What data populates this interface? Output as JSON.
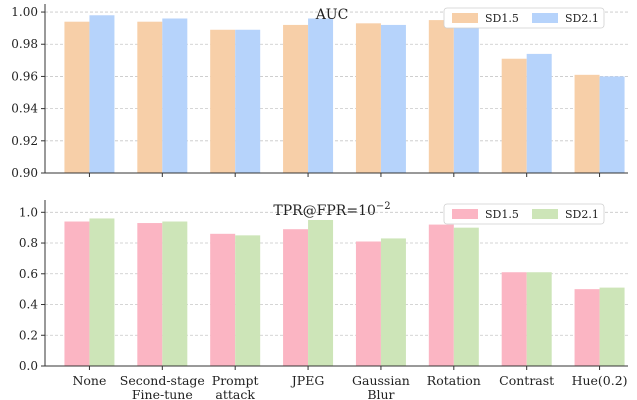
{
  "colors": {
    "auc_sd15": "#f7cfa8",
    "auc_sd21": "#b6d3fb",
    "tpr_sd15": "#fbb5c3",
    "tpr_sd21": "#cde5b8",
    "grid": "#c8c8c8",
    "axis": "#333333"
  },
  "chart_data": [
    {
      "type": "bar",
      "title": "AUC",
      "categories": [
        "None",
        "Second-stage\nFine-tune",
        "Prompt\nattack",
        "JPEG",
        "Gaussian\nBlur",
        "Rotation",
        "Contrast",
        "Hue(0.2)"
      ],
      "series": [
        {
          "name": "SD1.5",
          "values": [
            0.994,
            0.994,
            0.989,
            0.992,
            0.993,
            0.995,
            0.971,
            0.961
          ]
        },
        {
          "name": "SD2.1",
          "values": [
            0.998,
            0.996,
            0.989,
            0.996,
            0.992,
            0.996,
            0.974,
            0.96
          ]
        }
      ],
      "ylim": [
        0.9,
        1.005
      ],
      "yticks": [
        "0.90",
        "0.92",
        "0.94",
        "0.96",
        "0.98",
        "1.00"
      ],
      "ytick_values": [
        0.9,
        0.92,
        0.94,
        0.96,
        0.98,
        1.0
      ],
      "grid": true,
      "legend": "top-right"
    },
    {
      "type": "bar",
      "title": "TPR@FPR=10",
      "title_sup": "−2",
      "categories": [
        "None",
        "Second-stage\nFine-tune",
        "Prompt\nattack",
        "JPEG",
        "Gaussian\nBlur",
        "Rotation",
        "Contrast",
        "Hue(0.2)"
      ],
      "series": [
        {
          "name": "SD1.5",
          "values": [
            0.94,
            0.93,
            0.86,
            0.89,
            0.81,
            0.92,
            0.61,
            0.5
          ]
        },
        {
          "name": "SD2.1",
          "values": [
            0.96,
            0.94,
            0.85,
            0.95,
            0.83,
            0.9,
            0.61,
            0.51
          ]
        }
      ],
      "ylim": [
        0.0,
        1.08
      ],
      "yticks": [
        "0.0",
        "0.2",
        "0.4",
        "0.6",
        "0.8",
        "1.0"
      ],
      "ytick_values": [
        0.0,
        0.2,
        0.4,
        0.6,
        0.8,
        1.0
      ],
      "grid": true,
      "legend": "top-right"
    }
  ]
}
